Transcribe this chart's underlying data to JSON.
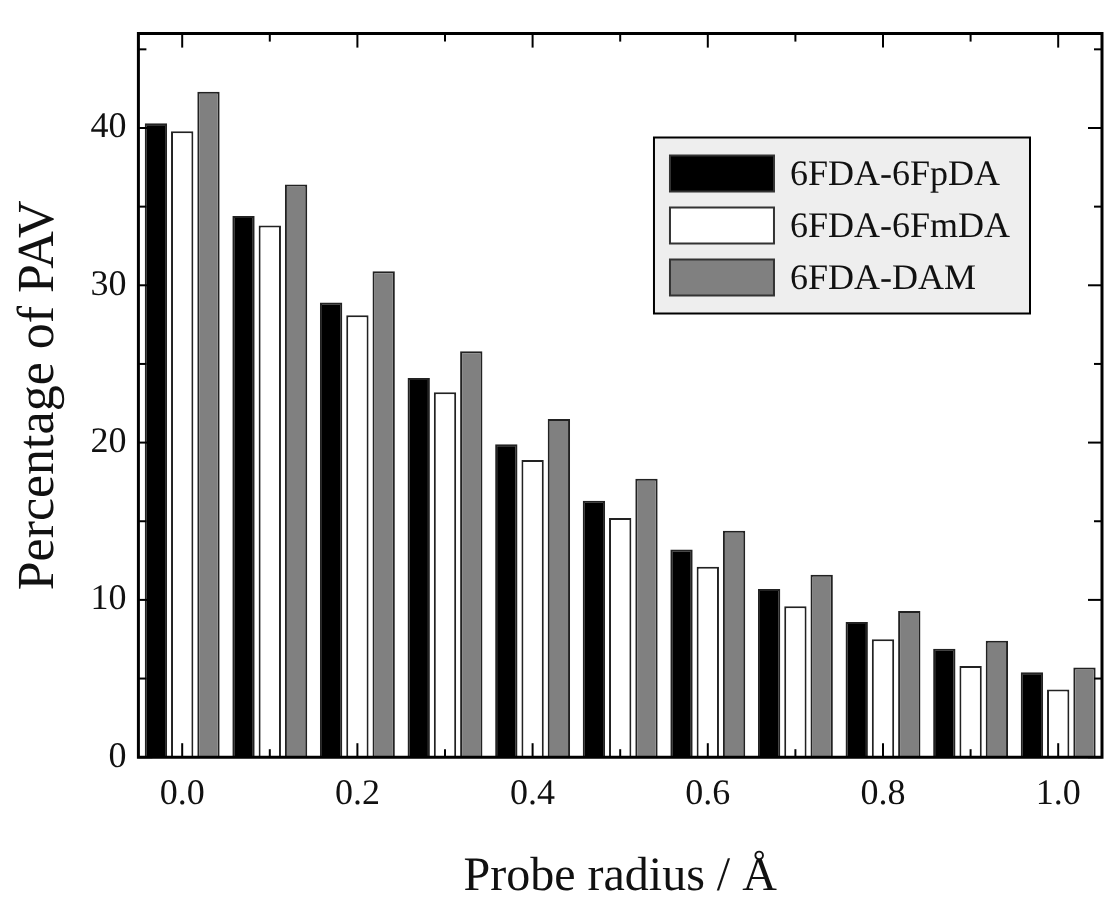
{
  "chart_data": {
    "type": "bar",
    "xlabel": "Probe radius / Å",
    "ylabel": "Percentage of PAV",
    "categories": [
      "0.0",
      null,
      "0.2",
      null,
      "0.4",
      null,
      "0.6",
      null,
      "0.8",
      null,
      "1.0"
    ],
    "series": [
      {
        "name": "6FDA-6FpDA",
        "color": "#000000",
        "values": [
          40.3,
          34.4,
          28.9,
          24.1,
          19.9,
          16.3,
          13.2,
          10.7,
          8.6,
          6.9,
          5.4
        ]
      },
      {
        "name": "6FDA-6FmDA",
        "color": "#ffffff",
        "values": [
          39.8,
          33.8,
          28.1,
          23.2,
          18.9,
          15.2,
          12.1,
          9.6,
          7.5,
          5.8,
          4.3
        ]
      },
      {
        "name": "6FDA-DAM",
        "color": "#808080",
        "values": [
          42.3,
          36.4,
          30.9,
          25.8,
          21.5,
          17.7,
          14.4,
          11.6,
          9.3,
          7.4,
          5.7
        ]
      }
    ],
    "ylim": [
      0,
      46
    ],
    "yticks": [
      0,
      {
        "value": 5,
        "label": null
      },
      10,
      {
        "value": 15,
        "label": null
      },
      20,
      {
        "value": 25,
        "label": null
      },
      30,
      {
        "value": 35,
        "label": null
      },
      40,
      {
        "value": 45,
        "label": null
      }
    ],
    "grid": false,
    "legend": "top right"
  }
}
